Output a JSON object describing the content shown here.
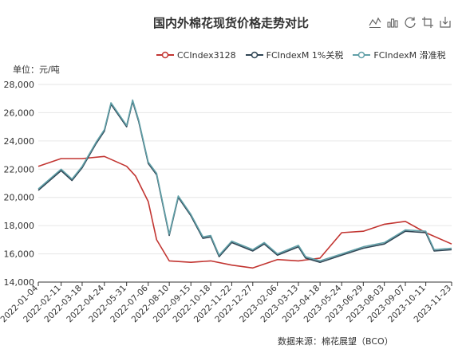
{
  "title": "国内外棉花现货价格走势对比",
  "unit_label": "单位：元/吨",
  "source_label": "数据来源：棉花展望（BCO）",
  "toolbox": [
    "line-chart-icon",
    "bar-chart-icon",
    "restore-icon",
    "zoom-icon",
    "save-icon"
  ],
  "chart_data": {
    "type": "line",
    "title": "国内外棉花现货价格走势对比",
    "ylabel": "单位：元/吨",
    "ylim": [
      14000,
      28000
    ],
    "yticks": [
      14000,
      16000,
      18000,
      20000,
      22000,
      24000,
      26000,
      28000
    ],
    "ytick_labels": [
      "14,000",
      "16,000",
      "18,000",
      "20,000",
      "22,000",
      "24,000",
      "26,000",
      "28,000"
    ],
    "xticks": [
      "2022-01-04",
      "2022-02-11",
      "2022-03-18",
      "2022-04-24",
      "2022-05-31",
      "2022-07-06",
      "2022-08-10",
      "2022-09-15",
      "2022-10-18",
      "2022-11-22",
      "2022-12-27",
      "2023-02-06",
      "2023-03-13",
      "2023-04-18",
      "2023-05-24",
      "2023-06-29",
      "2023-08-03",
      "2023-09-07",
      "2023-10-11",
      "2023-11-23"
    ],
    "grid": true,
    "legend_position": "top",
    "series": [
      {
        "name": "CCIndex3128",
        "color": "#c23531",
        "x": [
          "2022-01-04",
          "2022-02-11",
          "2022-03-18",
          "2022-04-24",
          "2022-05-31",
          "2022-06-15",
          "2022-07-06",
          "2022-07-20",
          "2022-08-10",
          "2022-09-15",
          "2022-10-18",
          "2022-11-22",
          "2022-12-27",
          "2023-02-06",
          "2023-03-13",
          "2023-04-18",
          "2023-05-24",
          "2023-06-29",
          "2023-08-03",
          "2023-09-07",
          "2023-10-11",
          "2023-11-23"
        ],
        "values": [
          22200,
          22750,
          22750,
          22900,
          22200,
          21500,
          19700,
          17000,
          15500,
          15400,
          15500,
          15200,
          15000,
          15600,
          15500,
          15700,
          17500,
          17600,
          18100,
          18300,
          17500,
          16700
        ]
      },
      {
        "name": "FCIndexM 1%关税",
        "color": "#2f4554",
        "x": [
          "2022-01-04",
          "2022-02-11",
          "2022-03-01",
          "2022-03-18",
          "2022-04-10",
          "2022-04-24",
          "2022-05-05",
          "2022-05-31",
          "2022-06-10",
          "2022-06-20",
          "2022-07-06",
          "2022-07-20",
          "2022-08-10",
          "2022-08-25",
          "2022-09-15",
          "2022-10-05",
          "2022-10-18",
          "2022-11-01",
          "2022-11-22",
          "2022-12-27",
          "2023-01-15",
          "2023-02-06",
          "2023-03-13",
          "2023-03-25",
          "2023-04-18",
          "2023-05-24",
          "2023-06-29",
          "2023-08-03",
          "2023-09-07",
          "2023-10-11",
          "2023-10-25",
          "2023-11-23"
        ],
        "values": [
          20500,
          21900,
          21200,
          22100,
          23800,
          24700,
          26600,
          25000,
          26800,
          25400,
          22400,
          21600,
          17300,
          20000,
          18700,
          17100,
          17200,
          15800,
          16800,
          16200,
          16700,
          15900,
          16500,
          15700,
          15400,
          15900,
          16400,
          16700,
          17600,
          17500,
          16200,
          16300
        ]
      },
      {
        "name": "FCIndexM 滑准税",
        "color": "#61a0a8",
        "x": [
          "2022-01-04",
          "2022-02-11",
          "2022-03-01",
          "2022-03-18",
          "2022-04-10",
          "2022-04-24",
          "2022-05-05",
          "2022-05-31",
          "2022-06-10",
          "2022-06-20",
          "2022-07-06",
          "2022-07-20",
          "2022-08-10",
          "2022-08-25",
          "2022-09-15",
          "2022-10-05",
          "2022-10-18",
          "2022-11-01",
          "2022-11-22",
          "2022-12-27",
          "2023-01-15",
          "2023-02-06",
          "2023-03-13",
          "2023-03-25",
          "2023-04-18",
          "2023-05-24",
          "2023-06-29",
          "2023-08-03",
          "2023-09-07",
          "2023-10-11",
          "2023-10-25",
          "2023-11-23"
        ],
        "values": [
          20600,
          22000,
          21300,
          22200,
          23900,
          24800,
          26700,
          25100,
          26900,
          25500,
          22500,
          21700,
          17400,
          20100,
          18800,
          17200,
          17300,
          15900,
          16900,
          16300,
          16800,
          16000,
          16600,
          15800,
          15500,
          16000,
          16500,
          16800,
          17700,
          17600,
          16300,
          16400
        ]
      }
    ]
  }
}
